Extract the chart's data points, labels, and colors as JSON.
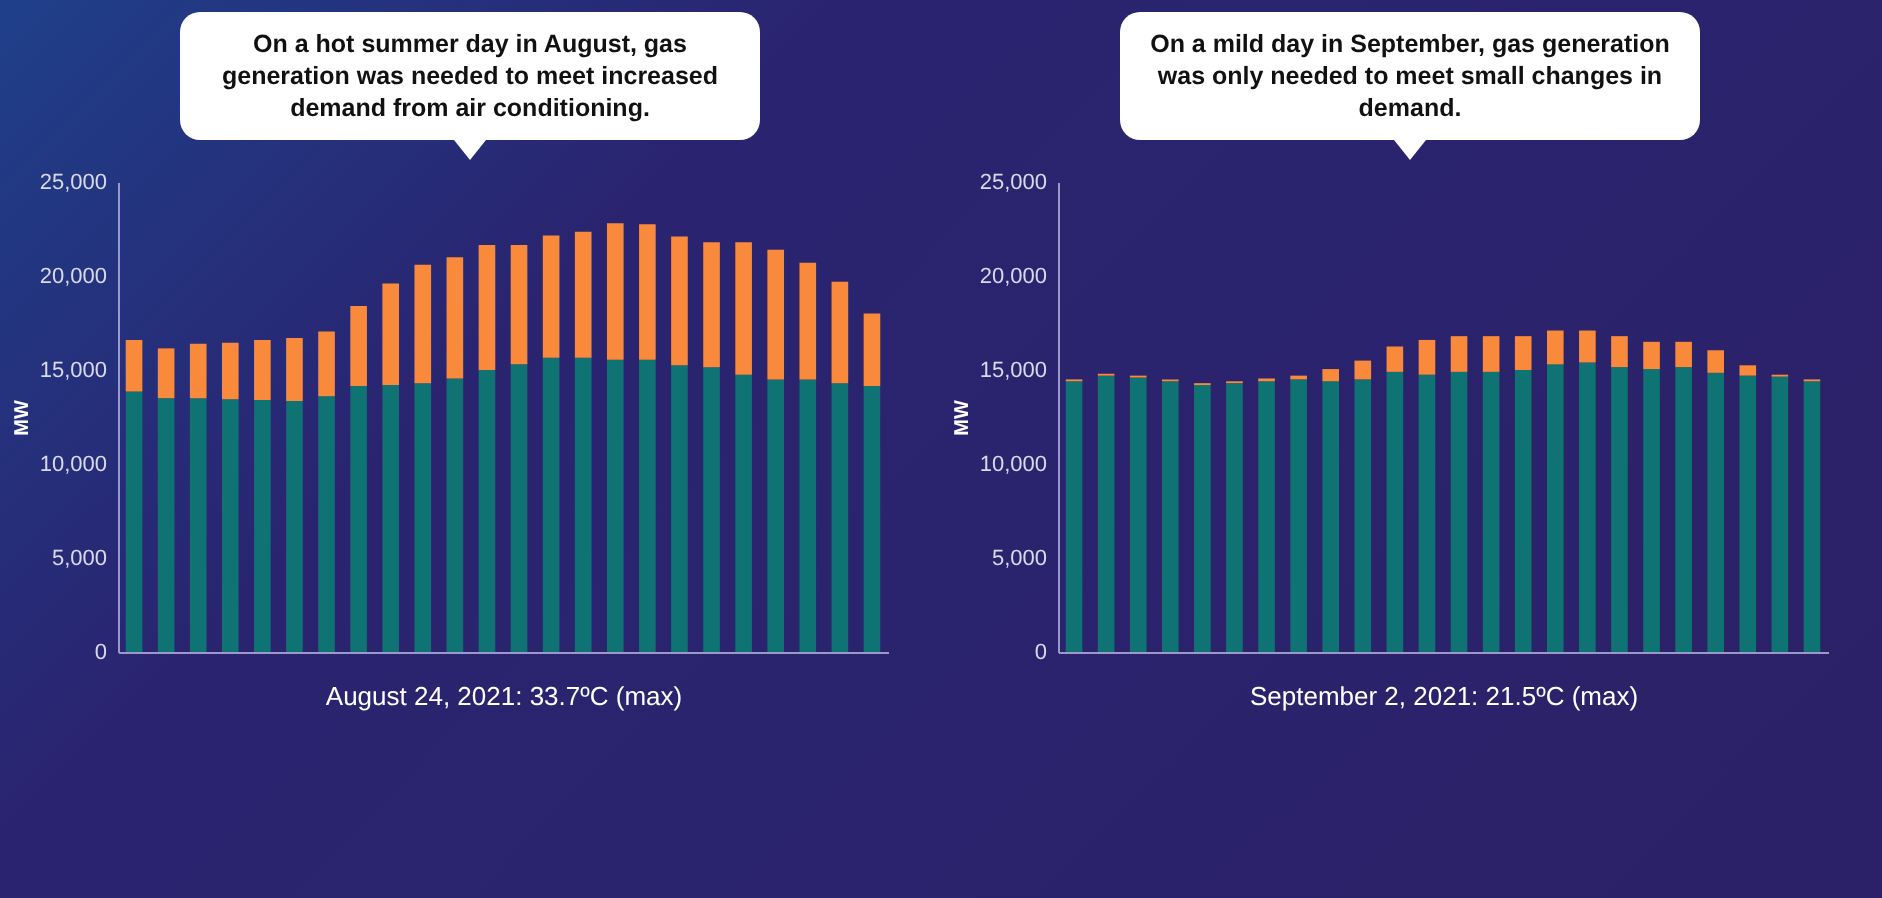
{
  "chart_data": [
    {
      "type": "bar",
      "stacked": true,
      "annotations": [
        "On a hot summer day in August, gas generation was needed to meet increased demand from air conditioning."
      ],
      "xlabel": "August 24, 2021: 33.7ºC (max)",
      "ylabel": "MW",
      "ylim": [
        0,
        25000
      ],
      "yticks": [
        {
          "value": 0,
          "label": "0"
        },
        {
          "value": 5000,
          "label": "5,000"
        },
        {
          "value": 10000,
          "label": "10,000"
        },
        {
          "value": 15000,
          "label": "15,000"
        },
        {
          "value": 20000,
          "label": "20,000"
        },
        {
          "value": 25000,
          "label": "25,000"
        }
      ],
      "categories": [
        null,
        null,
        null,
        null,
        null,
        null,
        null,
        null,
        null,
        null,
        null,
        null,
        null,
        null,
        null,
        null,
        null,
        null,
        null,
        null,
        null,
        null,
        null,
        null
      ],
      "series": [
        {
          "color": "#0e7372",
          "values": [
            13850,
            13500,
            13500,
            13450,
            13400,
            13350,
            13600,
            14150,
            14200,
            14300,
            14550,
            15000,
            15300,
            15650,
            15650,
            15550,
            15550,
            15250,
            15150,
            14750,
            14500,
            14500,
            14300,
            14150
          ]
        },
        {
          "color": "#f98a3c",
          "values": [
            2750,
            2650,
            2900,
            3000,
            3200,
            3350,
            3450,
            4250,
            5400,
            6300,
            6450,
            6650,
            6350,
            6500,
            6700,
            7250,
            7200,
            6850,
            6650,
            7050,
            6900,
            6200,
            5400,
            3850
          ]
        }
      ]
    },
    {
      "type": "bar",
      "stacked": true,
      "annotations": [
        "On a mild day in September, gas generation was only needed to meet small changes in demand."
      ],
      "xlabel": "September 2, 2021: 21.5ºC (max)",
      "ylabel": "MW",
      "ylim": [
        0,
        25000
      ],
      "yticks": [
        {
          "value": 0,
          "label": "0"
        },
        {
          "value": 5000,
          "label": "5,000"
        },
        {
          "value": 10000,
          "label": "10,000"
        },
        {
          "value": 15000,
          "label": "15,000"
        },
        {
          "value": 20000,
          "label": "20,000"
        },
        {
          "value": 25000,
          "label": "25,000"
        }
      ],
      "categories": [
        null,
        null,
        null,
        null,
        null,
        null,
        null,
        null,
        null,
        null,
        null,
        null,
        null,
        null,
        null,
        null,
        null,
        null,
        null,
        null,
        null,
        null,
        null,
        null
      ],
      "series": [
        {
          "color": "#0e7372",
          "values": [
            14400,
            14700,
            14600,
            14400,
            14200,
            14300,
            14400,
            14500,
            14400,
            14500,
            14900,
            14750,
            14900,
            14900,
            15000,
            15300,
            15400,
            15150,
            15050,
            15150,
            14850,
            14700,
            14650,
            14400
          ]
        },
        {
          "color": "#f98a3c",
          "values": [
            100,
            100,
            100,
            100,
            100,
            100,
            150,
            200,
            650,
            1000,
            1350,
            1850,
            1900,
            1900,
            1800,
            1800,
            1700,
            1650,
            1450,
            1350,
            1200,
            550,
            100,
            100
          ]
        }
      ]
    }
  ]
}
